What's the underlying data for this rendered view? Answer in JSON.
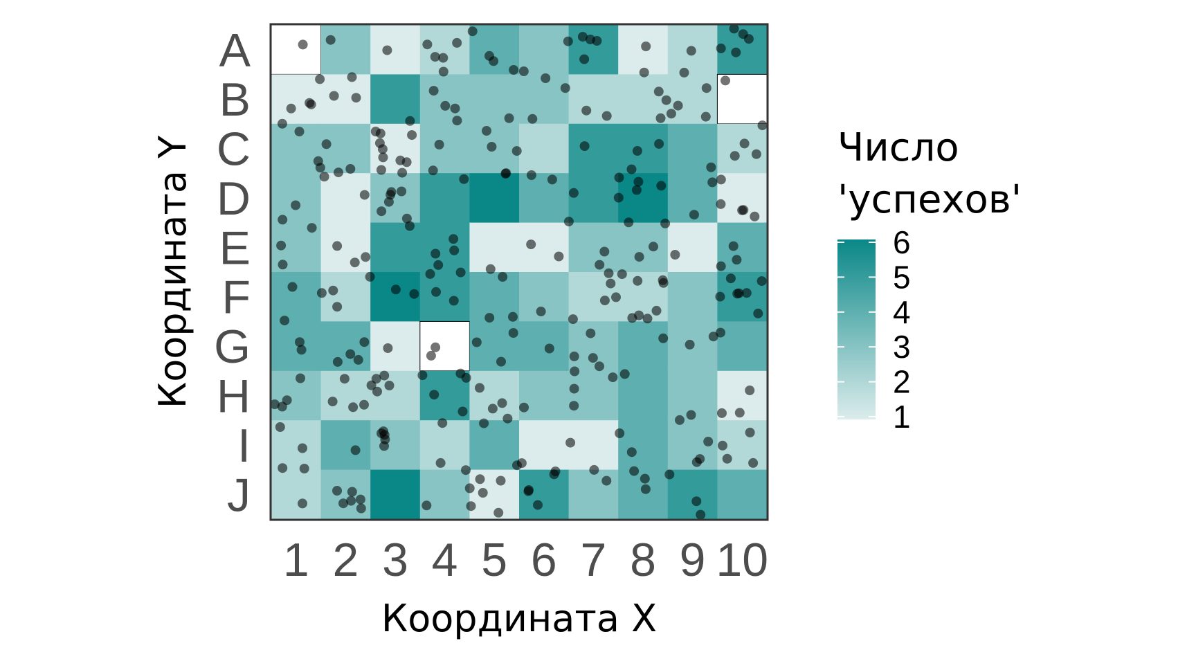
{
  "chart_data": {
    "type": "heatmap",
    "xlabel": "Координата X",
    "ylabel": "Координата Y",
    "x_categories": [
      "1",
      "2",
      "3",
      "4",
      "5",
      "6",
      "7",
      "8",
      "9",
      "10"
    ],
    "y_categories": [
      "A",
      "B",
      "C",
      "D",
      "E",
      "F",
      "G",
      "H",
      "I",
      "J"
    ],
    "z_values": [
      [
        null,
        3,
        1,
        2,
        4,
        3,
        5,
        1,
        2,
        5
      ],
      [
        1,
        1,
        5,
        3,
        3,
        3,
        2,
        2,
        2,
        null
      ],
      [
        3,
        3,
        1,
        3,
        3,
        2,
        5,
        5,
        4,
        2
      ],
      [
        3,
        1,
        3,
        5,
        6,
        4,
        5,
        6,
        4,
        1
      ],
      [
        3,
        1,
        5,
        5,
        1,
        1,
        3,
        3,
        1,
        4
      ],
      [
        4,
        2,
        6,
        5,
        4,
        3,
        2,
        2,
        3,
        5
      ],
      [
        4,
        4,
        1,
        null,
        4,
        4,
        3,
        4,
        3,
        4
      ],
      [
        3,
        2,
        2,
        5,
        2,
        3,
        3,
        4,
        3,
        1
      ],
      [
        2,
        4,
        3,
        2,
        4,
        1,
        1,
        4,
        3,
        2
      ],
      [
        2,
        3,
        6,
        3,
        1,
        5,
        3,
        4,
        5,
        4
      ]
    ],
    "legend": {
      "title": "Число 'успехов'",
      "ticks": [
        "1",
        "2",
        "3",
        "4",
        "5",
        "6"
      ],
      "min": 1,
      "max": 6,
      "placement": "right"
    },
    "colors": {
      "low": "#dcecec",
      "high": "#0a8787",
      "na": "#ffffff",
      "points": "#000000",
      "panel_border": "#333333"
    },
    "points_description_count": 280
  }
}
